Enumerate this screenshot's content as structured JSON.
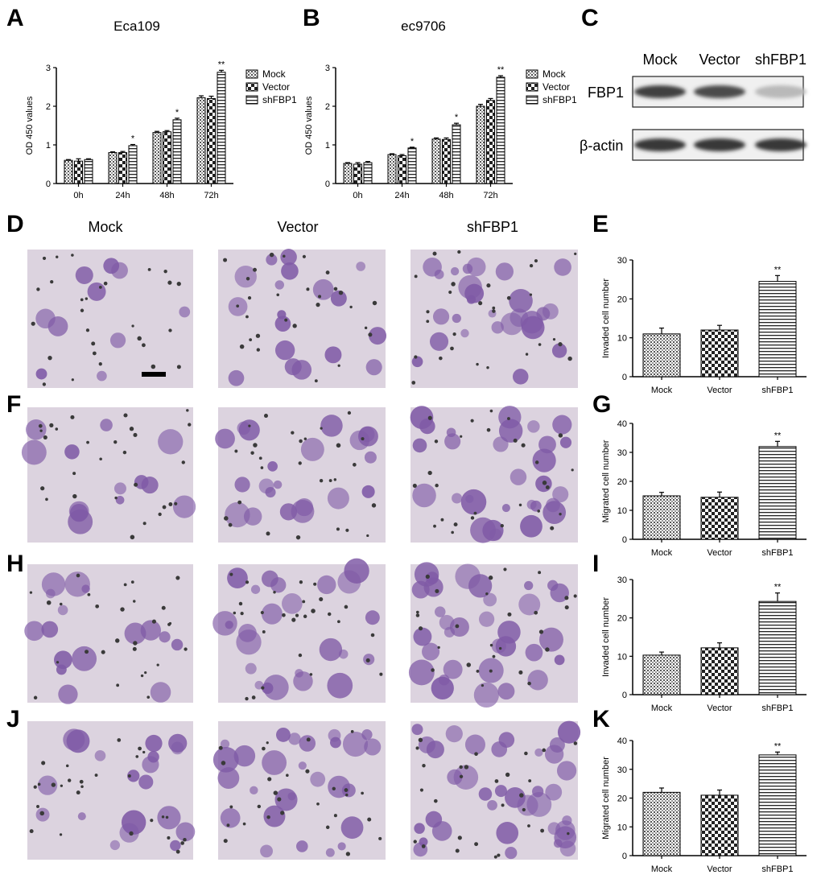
{
  "panel_labels": {
    "A": "A",
    "B": "B",
    "C": "C",
    "D": "D",
    "E": "E",
    "F": "F",
    "G": "G",
    "H": "H",
    "I": "I",
    "J": "J",
    "K": "K"
  },
  "column_headers": [
    "Mock",
    "Vector",
    "shFBP1"
  ],
  "western_blot": {
    "lanes": [
      "Mock",
      "Vector",
      "shFBP1"
    ],
    "rows": [
      {
        "label": "FBP1",
        "intensity": [
          0.85,
          0.8,
          0.25
        ]
      },
      {
        "label": "β-actin",
        "intensity": [
          0.9,
          0.9,
          0.9
        ]
      }
    ]
  },
  "micrograph": {
    "bg_color": "#dcd3df",
    "cell_color": "#7f5aa6"
  },
  "chart_data": [
    {
      "type": "bar",
      "panel": "A",
      "title": "Eca109",
      "ylabel": "OD 450 values",
      "xlabel": "",
      "categories": [
        "0h",
        "24h",
        "48h",
        "72h"
      ],
      "ylim": [
        0,
        3
      ],
      "yticks": [
        0,
        1,
        2,
        3
      ],
      "series": [
        {
          "name": "Mock",
          "values": [
            0.6,
            0.8,
            1.32,
            2.22
          ],
          "errors": [
            0.02,
            0.02,
            0.03,
            0.05
          ],
          "pattern": "dots"
        },
        {
          "name": "Vector",
          "values": [
            0.58,
            0.8,
            1.34,
            2.2
          ],
          "errors": [
            0.06,
            0.03,
            0.03,
            0.06
          ],
          "pattern": "checker"
        },
        {
          "name": "shFBP1",
          "values": [
            0.62,
            0.98,
            1.65,
            2.88
          ],
          "errors": [
            0.02,
            0.03,
            0.04,
            0.05
          ],
          "pattern": "hlines"
        }
      ],
      "significance": [
        null,
        "*",
        "*",
        "**"
      ]
    },
    {
      "type": "bar",
      "panel": "B",
      "title": "ec9706",
      "ylabel": "OD 450 values",
      "xlabel": "",
      "categories": [
        "0h",
        "24h",
        "48h",
        "72h"
      ],
      "ylim": [
        0,
        3
      ],
      "yticks": [
        0,
        1,
        2,
        3
      ],
      "series": [
        {
          "name": "Mock",
          "values": [
            0.52,
            0.75,
            1.15,
            2.0
          ],
          "errors": [
            0.02,
            0.02,
            0.03,
            0.05
          ],
          "pattern": "dots"
        },
        {
          "name": "Vector",
          "values": [
            0.5,
            0.72,
            1.14,
            2.15
          ],
          "errors": [
            0.04,
            0.03,
            0.04,
            0.05
          ],
          "pattern": "checker"
        },
        {
          "name": "shFBP1",
          "values": [
            0.54,
            0.92,
            1.52,
            2.75
          ],
          "errors": [
            0.03,
            0.02,
            0.04,
            0.04
          ],
          "pattern": "hlines"
        }
      ],
      "significance": [
        null,
        "*",
        "*",
        "**"
      ]
    },
    {
      "type": "bar",
      "panel": "E",
      "ylabel": "Invaded cell number",
      "xlabel": "",
      "categories": [
        "Mock",
        "Vector",
        "shFBP1"
      ],
      "values": [
        11,
        12,
        24.5
      ],
      "errors": [
        1.5,
        1.2,
        1.5
      ],
      "patterns": [
        "dots",
        "checker",
        "hlines"
      ],
      "ylim": [
        0,
        30
      ],
      "yticks": [
        0,
        10,
        20,
        30
      ],
      "significance": [
        null,
        null,
        "**"
      ]
    },
    {
      "type": "bar",
      "panel": "G",
      "ylabel": "Migrated cell number",
      "xlabel": "",
      "categories": [
        "Mock",
        "Vector",
        "shFBP1"
      ],
      "values": [
        15,
        14.5,
        32
      ],
      "errors": [
        1.2,
        1.8,
        1.8
      ],
      "patterns": [
        "dots",
        "checker",
        "hlines"
      ],
      "ylim": [
        0,
        40
      ],
      "yticks": [
        0,
        10,
        20,
        30,
        40
      ],
      "significance": [
        null,
        null,
        "**"
      ]
    },
    {
      "type": "bar",
      "panel": "I",
      "ylabel": "Invaded cell number",
      "xlabel": "",
      "categories": [
        "Mock",
        "Vector",
        "shFBP1"
      ],
      "values": [
        10.3,
        12.2,
        24.3
      ],
      "errors": [
        0.8,
        1.3,
        2.2
      ],
      "patterns": [
        "dots",
        "checker",
        "hlines"
      ],
      "ylim": [
        0,
        30
      ],
      "yticks": [
        0,
        10,
        20,
        30
      ],
      "significance": [
        null,
        null,
        "**"
      ]
    },
    {
      "type": "bar",
      "panel": "K",
      "ylabel": "Migrated cell number",
      "xlabel": "",
      "categories": [
        "Mock",
        "Vector",
        "shFBP1"
      ],
      "values": [
        22,
        21,
        35
      ],
      "errors": [
        1.5,
        1.8,
        1.0
      ],
      "patterns": [
        "dots",
        "checker",
        "hlines"
      ],
      "ylim": [
        0,
        40
      ],
      "yticks": [
        0,
        10,
        20,
        30,
        40
      ],
      "significance": [
        null,
        null,
        "**"
      ]
    }
  ]
}
